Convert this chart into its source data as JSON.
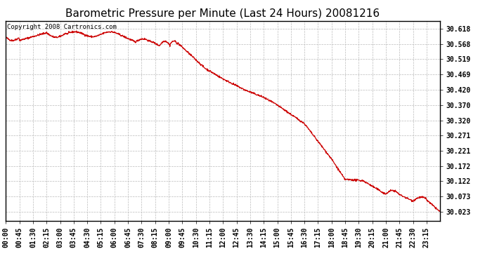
{
  "title": "Barometric Pressure per Minute (Last 24 Hours) 20081216",
  "copyright_text": "Copyright 2008 Cartronics.com",
  "line_color": "#cc0000",
  "background_color": "#ffffff",
  "grid_color": "#bbbbbb",
  "yticks": [
    30.023,
    30.073,
    30.122,
    30.172,
    30.221,
    30.271,
    30.32,
    30.37,
    30.42,
    30.469,
    30.519,
    30.568,
    30.618
  ],
  "ylim": [
    29.993,
    30.643
  ],
  "xtick_labels": [
    "00:00",
    "00:45",
    "01:30",
    "02:15",
    "03:00",
    "03:45",
    "04:30",
    "05:15",
    "06:00",
    "06:45",
    "07:30",
    "08:15",
    "09:00",
    "09:45",
    "10:30",
    "11:15",
    "12:00",
    "12:45",
    "13:30",
    "14:15",
    "15:00",
    "15:45",
    "16:30",
    "17:15",
    "18:00",
    "18:45",
    "19:30",
    "20:15",
    "21:00",
    "21:45",
    "22:30",
    "23:15"
  ],
  "title_fontsize": 11,
  "tick_fontsize": 7,
  "copyright_fontsize": 6.5
}
